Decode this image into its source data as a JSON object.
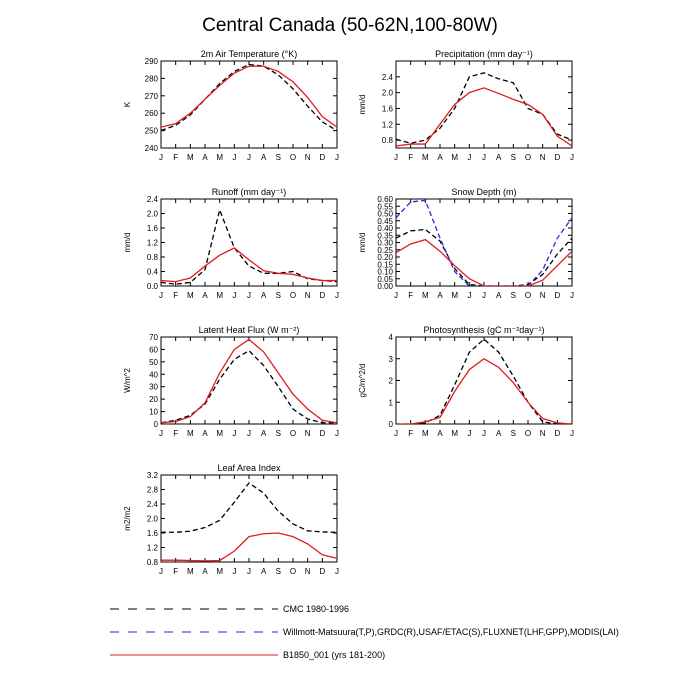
{
  "title": "Central Canada (50-62N,100-80W)",
  "months": [
    "J",
    "F",
    "M",
    "A",
    "M",
    "J",
    "J",
    "A",
    "S",
    "O",
    "N",
    "D",
    "J"
  ],
  "colors": {
    "cmc": "#000000",
    "obs": "#2a2ad6",
    "model": "#e01b1b"
  },
  "legend": [
    {
      "key": "cmc",
      "label": "CMC 1980-1996",
      "style": "dash"
    },
    {
      "key": "obs",
      "label": "Willmott-Matsuura(T,P),GRDC(R),USAF/ETAC(S),FLUXNET(LHF,GPP),MODIS(LAI)",
      "style": "dash"
    },
    {
      "key": "model",
      "label": "B1850_001 (yrs 181-200)",
      "style": "solid"
    }
  ],
  "chart_data": [
    {
      "type": "line",
      "title": "2m Air Temperature (°K)",
      "ylabel": "K",
      "ylim": [
        240,
        290
      ],
      "yticks": [
        240,
        250,
        260,
        270,
        280,
        290
      ],
      "series": [
        {
          "name": "CMC 1980-1996",
          "key": "cmc",
          "values": [
            250,
            253,
            259,
            268,
            277,
            284,
            288,
            287,
            282,
            274,
            264,
            255,
            250
          ]
        },
        {
          "name": "B1850_001 (yrs 181-200)",
          "key": "model",
          "values": [
            252,
            254,
            260,
            268,
            276,
            283,
            287,
            287,
            284,
            278,
            269,
            258,
            252
          ]
        }
      ]
    },
    {
      "type": "line",
      "title": "Precipitation (mm day⁻¹)",
      "ylabel": "mm/d",
      "ylim": [
        0.6,
        2.8
      ],
      "yticks": [
        0.8,
        1.2,
        1.6,
        2.0,
        2.4
      ],
      "series": [
        {
          "name": "CMC 1980-1996",
          "key": "cmc",
          "values": [
            0.82,
            0.72,
            0.8,
            1.1,
            1.6,
            2.4,
            2.5,
            2.35,
            2.25,
            1.6,
            1.45,
            0.95,
            0.8
          ]
        },
        {
          "name": "B1850_001 (yrs 181-200)",
          "key": "model",
          "values": [
            0.65,
            0.7,
            0.7,
            1.2,
            1.7,
            2.0,
            2.12,
            1.98,
            1.83,
            1.7,
            1.45,
            0.9,
            0.65
          ]
        }
      ]
    },
    {
      "type": "line",
      "title": "Runoff (mm day⁻¹)",
      "ylabel": "mm/d",
      "ylim": [
        0.0,
        2.4
      ],
      "yticks": [
        0.0,
        0.4,
        0.8,
        1.2,
        1.6,
        2.0,
        2.4
      ],
      "series": [
        {
          "name": "CMC 1980-1996",
          "key": "cmc",
          "values": [
            0.1,
            0.05,
            0.1,
            0.45,
            2.1,
            1.05,
            0.55,
            0.35,
            0.35,
            0.4,
            0.2,
            0.15,
            0.12
          ]
        },
        {
          "name": "B1850_001 (yrs 181-200)",
          "key": "model",
          "values": [
            0.15,
            0.12,
            0.22,
            0.55,
            0.85,
            1.05,
            0.72,
            0.42,
            0.35,
            0.32,
            0.22,
            0.15,
            0.15
          ]
        }
      ]
    },
    {
      "type": "line",
      "title": "Snow Depth (m)",
      "ylabel": "mm/d",
      "ylim": [
        0.0,
        0.6
      ],
      "yticks": [
        0.0,
        0.05,
        0.1,
        0.15,
        0.2,
        0.25,
        0.3,
        0.35,
        0.4,
        0.45,
        0.5,
        0.55,
        0.6
      ],
      "ytick_labels": [
        "0.00",
        "0.05",
        "0.10",
        "0.15",
        "0.20",
        "0.25",
        "0.30",
        "0.35",
        "0.40",
        "0.45",
        "0.50",
        "0.55",
        "0.60"
      ],
      "series": [
        {
          "name": "CMC 1980-1996",
          "key": "cmc",
          "values": [
            0.33,
            0.38,
            0.39,
            0.31,
            0.12,
            0.01,
            0.0,
            0.0,
            0.0,
            0.01,
            0.08,
            0.22,
            0.33
          ]
        },
        {
          "name": "Willmott-Matsuura(T,P),GRDC(R),USAF/ETAC(S),FLUXNET(LHF,GPP),MODIS(LAI)",
          "key": "obs",
          "values": [
            0.47,
            0.58,
            0.59,
            0.33,
            0.1,
            0.0,
            0.0,
            0.0,
            0.0,
            0.0,
            0.11,
            0.33,
            0.47
          ]
        },
        {
          "name": "B1850_001 (yrs 181-200)",
          "key": "model",
          "values": [
            0.23,
            0.29,
            0.32,
            0.24,
            0.14,
            0.05,
            0.0,
            0.0,
            0.0,
            0.0,
            0.04,
            0.14,
            0.24
          ]
        }
      ]
    },
    {
      "type": "line",
      "title": "Latent Heat Flux (W m⁻²)",
      "ylabel": "W/m^2",
      "ylim": [
        0,
        70
      ],
      "yticks": [
        0,
        10,
        20,
        30,
        40,
        50,
        60,
        70
      ],
      "series": [
        {
          "name": "CMC 1980-1996",
          "key": "cmc",
          "values": [
            1,
            3,
            7,
            16,
            36,
            52,
            59,
            47,
            30,
            12,
            4,
            1,
            1
          ]
        },
        {
          "name": "B1850_001 (yrs 181-200)",
          "key": "model",
          "values": [
            1,
            2,
            6,
            17,
            41,
            60,
            68,
            58,
            41,
            24,
            12,
            3,
            1
          ]
        }
      ]
    },
    {
      "type": "line",
      "title": "Photosynthesis (gC m⁻²day⁻¹)",
      "ylabel": "gC/m^2/d",
      "ylim": [
        0.0,
        4.0
      ],
      "yticks": [
        0.0,
        1.0,
        2.0,
        3.0,
        4.0
      ],
      "series": [
        {
          "name": "CMC 1980-1996",
          "key": "cmc",
          "values": [
            0.0,
            0.0,
            0.05,
            0.4,
            1.8,
            3.3,
            3.9,
            3.3,
            2.2,
            1.0,
            0.1,
            0.0,
            0.0
          ]
        },
        {
          "name": "B1850_001 (yrs 181-200)",
          "key": "model",
          "values": [
            0.0,
            0.0,
            0.1,
            0.3,
            1.5,
            2.5,
            3.0,
            2.6,
            1.9,
            1.0,
            0.25,
            0.05,
            0.0
          ]
        }
      ]
    },
    {
      "type": "line",
      "title": "Leaf Area Index",
      "ylabel": "m2/m2",
      "ylim": [
        0.8,
        3.2
      ],
      "yticks": [
        0.8,
        1.2,
        1.6,
        2.0,
        2.4,
        2.8,
        3.2
      ],
      "series": [
        {
          "name": "CMC 1980-1996",
          "key": "cmc",
          "values": [
            1.62,
            1.62,
            1.65,
            1.75,
            1.95,
            2.45,
            2.98,
            2.7,
            2.2,
            1.85,
            1.66,
            1.63,
            1.62
          ]
        },
        {
          "name": "B1850_001 (yrs 181-200)",
          "key": "model",
          "values": [
            0.85,
            0.85,
            0.84,
            0.83,
            0.84,
            1.1,
            1.5,
            1.58,
            1.6,
            1.5,
            1.3,
            1.0,
            0.9
          ]
        }
      ]
    }
  ]
}
